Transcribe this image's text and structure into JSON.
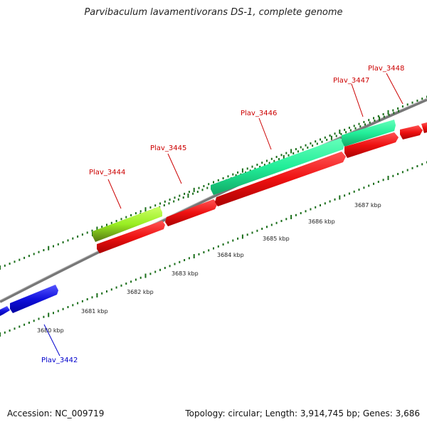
{
  "title": "Parvibaculum lavamentivorans DS-1, complete genome",
  "footer": {
    "accession": "Accession: NC_009719",
    "summary": "Topology: circular; Length: 3,914,745 bp; Genes: 3,686"
  },
  "ticks": [
    "3680 kbp",
    "3681 kbp",
    "3682 kbp",
    "3683 kbp",
    "3684 kbp",
    "3685 kbp",
    "3686 kbp",
    "3687 kbp"
  ],
  "genes": [
    {
      "name": "Plav_3442",
      "color": "#0000cc"
    },
    {
      "name": "Plav_3444",
      "color": "#cc0000"
    },
    {
      "name": "Plav_3445",
      "color": "#cc0000"
    },
    {
      "name": "Plav_3446",
      "color": "#cc0000"
    },
    {
      "name": "Plav_3447",
      "color": "#cc0000"
    },
    {
      "name": "Plav_3448",
      "color": "#cc0000"
    }
  ],
  "colors": {
    "backbone": "#808080",
    "tick_major": "#1a6e1a",
    "tick_minor": "#2a8a2a",
    "gene_red": "#ee1111",
    "gene_blue": "#1111dd",
    "gene_green": "#22ee99",
    "gene_lime": "#99ee22"
  }
}
